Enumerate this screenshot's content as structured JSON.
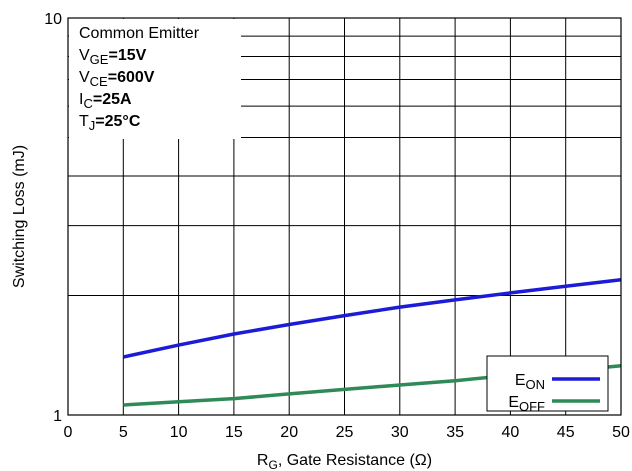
{
  "chart_data": {
    "type": "line",
    "y_scale": "log",
    "xlim": [
      0,
      50
    ],
    "ylim": [
      1,
      10
    ],
    "x_ticks": [
      "0",
      "5",
      "10",
      "15",
      "20",
      "25",
      "30",
      "35",
      "40",
      "45",
      "50"
    ],
    "y_ticks": [
      "1",
      "10"
    ],
    "grid": true,
    "xlabel": {
      "main": "R",
      "sub": "G",
      "rest": ", Gate Resistance (Ω)"
    },
    "ylabel": "Switching Loss (mJ)",
    "conditions": [
      {
        "main": "Common Emitter",
        "sub": "",
        "rest": ""
      },
      {
        "main": "V",
        "sub": "GE",
        "rest": "=15V"
      },
      {
        "main": "V",
        "sub": "CE",
        "rest": "=600V"
      },
      {
        "main": "I",
        "sub": "C",
        "rest": "=25A"
      },
      {
        "main": "T",
        "sub": "J",
        "rest": "=25°C"
      }
    ],
    "legend_position": "bottom-right",
    "series": [
      {
        "name": {
          "main": "E",
          "sub": "ON"
        },
        "color": "#1c1cd6",
        "x": [
          5,
          10,
          15,
          20,
          25,
          30,
          35,
          40,
          45,
          50
        ],
        "y": [
          1.4,
          1.5,
          1.6,
          1.69,
          1.78,
          1.87,
          1.95,
          2.03,
          2.11,
          2.19
        ]
      },
      {
        "name": {
          "main": "E",
          "sub": "OFF"
        },
        "color": "#2e8b57",
        "x": [
          5,
          10,
          15,
          20,
          25,
          30,
          35,
          40,
          45,
          50
        ],
        "y": [
          1.06,
          1.08,
          1.1,
          1.13,
          1.16,
          1.19,
          1.22,
          1.26,
          1.29,
          1.33
        ]
      }
    ]
  }
}
